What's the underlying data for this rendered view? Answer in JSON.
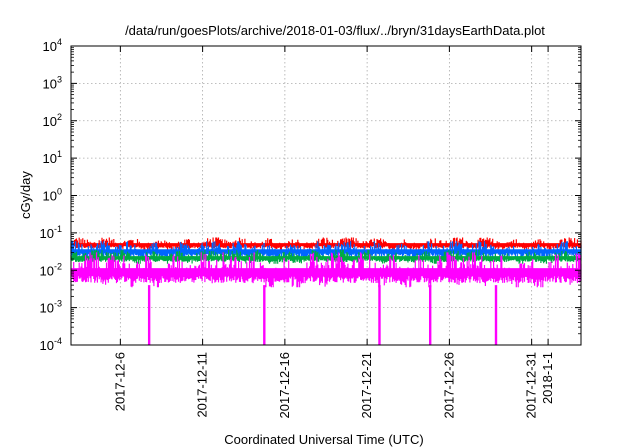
{
  "chart_data": {
    "type": "line",
    "title": "/data/run/goesPlots/archive/2018-01-03/flux/../bryn/31daysEarthData.plot",
    "xlabel": "Coordinated Universal Time (UTC)",
    "ylabel": "cGy/day",
    "yscale": "log",
    "ylim": [
      0.0001,
      10000
    ],
    "xlim": [
      "2017-12-03",
      "2018-01-03"
    ],
    "y_ticks": [
      {
        "value": 0.0001,
        "base": "10",
        "exp": "-4"
      },
      {
        "value": 0.001,
        "base": "10",
        "exp": "-3"
      },
      {
        "value": 0.01,
        "base": "10",
        "exp": "-2"
      },
      {
        "value": 0.1,
        "base": "10",
        "exp": "-1"
      },
      {
        "value": 1,
        "base": "10",
        "exp": "0"
      },
      {
        "value": 10,
        "base": "10",
        "exp": "1"
      },
      {
        "value": 100,
        "base": "10",
        "exp": "2"
      },
      {
        "value": 1000,
        "base": "10",
        "exp": "3"
      },
      {
        "value": 10000,
        "base": "10",
        "exp": "4"
      }
    ],
    "x_ticks": [
      "2017-12-6",
      "2017-12-11",
      "2017-12-16",
      "2017-12-21",
      "2017-12-26",
      "2017-12-31",
      "2018-1-1"
    ],
    "grid": true,
    "legend": "none",
    "series": [
      {
        "color": "#ff0000",
        "band": [
          0.035,
          0.075
        ]
      },
      {
        "color": "#0066ff",
        "band": [
          0.02,
          0.06
        ]
      },
      {
        "color": "#00aa44",
        "band": [
          0.015,
          0.035
        ]
      },
      {
        "color": "#ff00ff",
        "band": [
          0.0035,
          0.03
        ]
      }
    ],
    "dropouts": [
      {
        "series": "#ff00ff",
        "date": "2017-12-07T18:00",
        "value": 0.0001
      },
      {
        "series": "#ff00ff",
        "date": "2017-12-14T18:00",
        "value": 0.0001
      },
      {
        "series": "#ff00ff",
        "date": "2017-12-21T18:00",
        "value": 0.0001
      },
      {
        "series": "#ff00ff",
        "date": "2017-12-24T20:00",
        "value": 0.0001
      },
      {
        "series": "#ff00ff",
        "date": "2017-12-28T20:00",
        "value": 0.0001
      }
    ]
  }
}
